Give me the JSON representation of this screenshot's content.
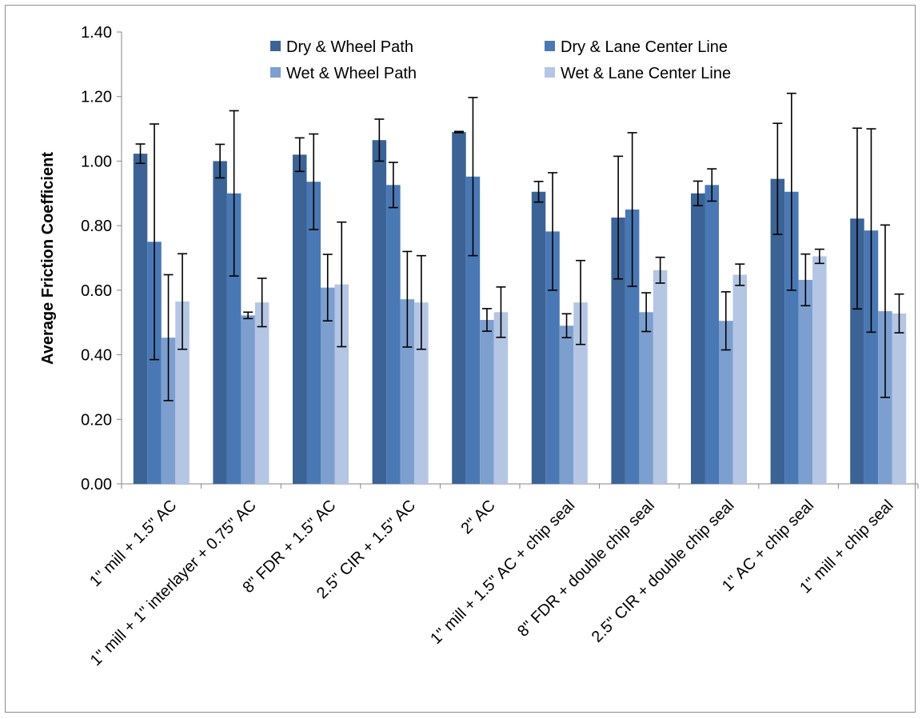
{
  "chart_data": {
    "type": "bar",
    "ylabel": "Average Friction Coefficient",
    "xlabel": "",
    "ylim": [
      0,
      1.4
    ],
    "yticks": [
      0,
      0.2,
      0.4,
      0.6,
      0.8,
      1.0,
      1.2,
      1.4
    ],
    "ytick_labels": [
      "0.00",
      "0.20",
      "0.40",
      "0.60",
      "0.80",
      "1.00",
      "1.20",
      "1.40"
    ],
    "grid": false,
    "legend_position": "top",
    "categories": [
      "1\" mill + 1.5\" AC",
      "1\" mill + 1\" interlayer + 0.75\" AC",
      "8\" FDR + 1.5\" AC",
      "2.5\" CIR + 1.5\" AC",
      "2\" AC",
      "1\" mill + 1.5\" AC + chip seal",
      "8\" FDR + double chip seal",
      "2.5\" CIR + double chip seal",
      "1\" AC + chip seal",
      "1\" mill + chip seal"
    ],
    "series": [
      {
        "name": "Dry & Wheel Path",
        "color": "#3b6395",
        "values": [
          1.023,
          1.0,
          1.02,
          1.065,
          1.09,
          0.905,
          0.825,
          0.9,
          0.945,
          0.822
        ],
        "errors": [
          0.03,
          0.052,
          0.052,
          0.065,
          0.002,
          0.032,
          0.19,
          0.038,
          0.172,
          0.28
        ]
      },
      {
        "name": "Dry & Lane Center Line",
        "color": "#4a78b4",
        "values": [
          0.75,
          0.9,
          0.936,
          0.926,
          0.952,
          0.782,
          0.85,
          0.926,
          0.905,
          0.785
        ],
        "errors": [
          0.365,
          0.256,
          0.148,
          0.07,
          0.245,
          0.182,
          0.238,
          0.05,
          0.305,
          0.315
        ]
      },
      {
        "name": "Wet & Wheel Path",
        "color": "#7d9fcf",
        "values": [
          0.453,
          0.522,
          0.608,
          0.572,
          0.508,
          0.49,
          0.532,
          0.505,
          0.632,
          0.535
        ],
        "errors": [
          0.195,
          0.01,
          0.103,
          0.148,
          0.035,
          0.037,
          0.06,
          0.09,
          0.08,
          0.267
        ]
      },
      {
        "name": "Wet & Lane Center Line",
        "color": "#b4c6e4",
        "values": [
          0.565,
          0.562,
          0.618,
          0.562,
          0.532,
          0.562,
          0.662,
          0.648,
          0.705,
          0.528
        ],
        "errors": [
          0.148,
          0.075,
          0.193,
          0.145,
          0.078,
          0.13,
          0.04,
          0.033,
          0.022,
          0.06
        ]
      }
    ]
  }
}
